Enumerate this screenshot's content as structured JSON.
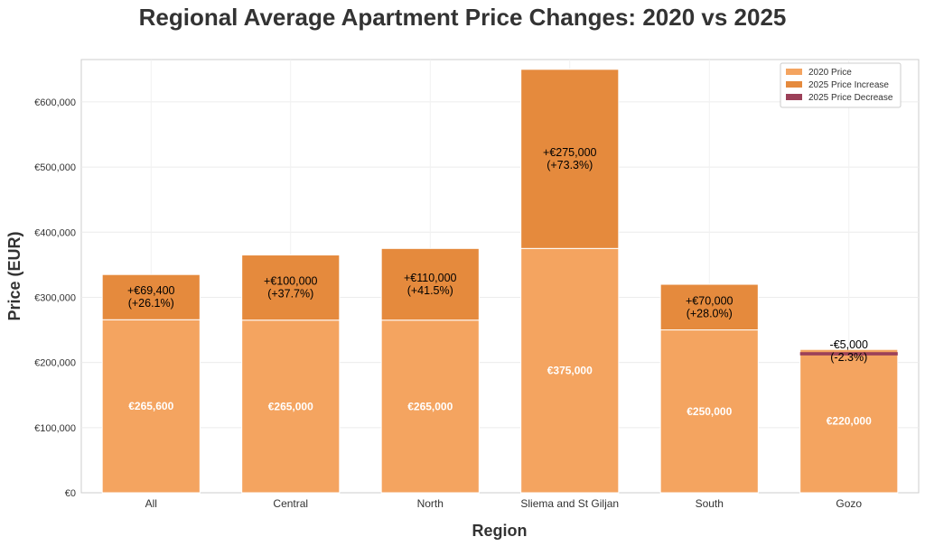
{
  "chart_data": {
    "type": "bar",
    "title": "Regional Average Apartment Price Changes: 2020 vs 2025",
    "xlabel": "Region",
    "ylabel": "Price (EUR)",
    "ylim": [
      0,
      665000
    ],
    "yticks": [
      0,
      100000,
      200000,
      300000,
      400000,
      500000,
      600000
    ],
    "ytick_labels": [
      "€0",
      "€100,000",
      "€200,000",
      "€300,000",
      "€400,000",
      "€500,000",
      "€600,000"
    ],
    "grid": true,
    "legend_position": "top-right",
    "categories": [
      "All",
      "Central",
      "North",
      "Sliema and St Giljan",
      "South",
      "Gozo"
    ],
    "series": [
      {
        "name": "2020 Price",
        "color": "#F4A460",
        "values": [
          265600,
          265000,
          265000,
          375000,
          250000,
          220000
        ]
      },
      {
        "name": "2025 Price Increase",
        "color": "#E58A3D",
        "values": [
          69400,
          100000,
          110000,
          275000,
          70000,
          0
        ]
      },
      {
        "name": "2025 Price Decrease",
        "color": "#9B4058",
        "values": [
          0,
          0,
          0,
          0,
          0,
          -5000
        ]
      }
    ],
    "base_labels": [
      "€265,600",
      "€265,000",
      "€265,000",
      "€375,000",
      "€250,000",
      "€220,000"
    ],
    "change_labels": [
      [
        "+€69,400",
        "(+26.1%)"
      ],
      [
        "+€100,000",
        "(+37.7%)"
      ],
      [
        "+€110,000",
        "(+41.5%)"
      ],
      [
        "+€275,000",
        "(+73.3%)"
      ],
      [
        "+€70,000",
        "(+28.0%)"
      ],
      [
        "-€5,000",
        "(-2.3%)"
      ]
    ]
  }
}
